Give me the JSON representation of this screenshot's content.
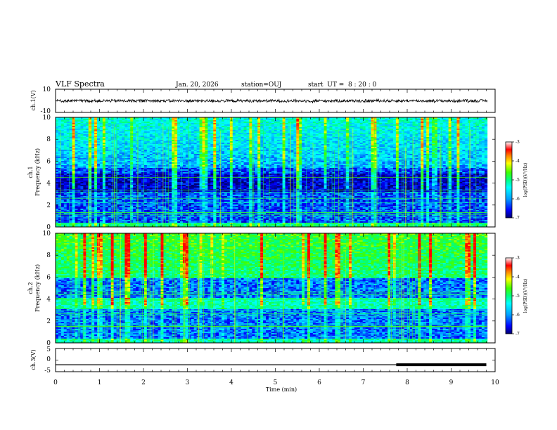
{
  "header": {
    "title": "VLF Spectra",
    "date": "Jan. 20, 2026",
    "station": "station=OUJ",
    "start_ut": "start  UT =  8 : 20 : 0"
  },
  "chart_data": {
    "type": "heatmap",
    "panels": [
      {
        "id": "ch1-waveform",
        "ylabel": "ch.1(V)",
        "ylim": [
          -10,
          10
        ],
        "yticks": [
          "10",
          "-10"
        ],
        "trace_amplitude_approx": 1.2
      },
      {
        "id": "ch1-spectrogram",
        "ylabel": "ch.1\nFrequency (kHz)",
        "ylim": [
          0,
          10
        ],
        "yticks": [
          "0",
          "2",
          "4",
          "6",
          "8",
          "10"
        ],
        "colorbar": {
          "label": "log(PSD)(V²/Hz)",
          "range": [
            -7,
            -3
          ],
          "ticks": [
            "-3",
            "-4",
            "-5",
            "-6",
            "-7"
          ]
        }
      },
      {
        "id": "ch2-spectrogram",
        "ylabel": "ch.2\nFrequency (kHz)",
        "ylim": [
          0,
          10
        ],
        "yticks": [
          "0",
          "2",
          "4",
          "6",
          "8",
          "10"
        ],
        "colorbar": {
          "label": "log(PSD)(V²/Hz)",
          "range": [
            -7,
            -3
          ],
          "ticks": [
            "-3",
            "-4",
            "-5",
            "-6",
            "-7"
          ]
        }
      },
      {
        "id": "ch3-waveform",
        "ylabel": "ch.3(V)",
        "ylim": [
          -5,
          5
        ],
        "yticks": [
          "5",
          "0",
          "-5"
        ],
        "trace": [
          {
            "x": 0,
            "y": -2
          },
          {
            "x": 7.75,
            "y": -2
          },
          {
            "x": 9.8,
            "y": -2
          }
        ],
        "thick_segment": [
          7.75,
          9.8
        ]
      }
    ],
    "x": {
      "label": "Time (min)",
      "ticks": [
        "0",
        "1",
        "2",
        "3",
        "4",
        "5",
        "6",
        "7",
        "8",
        "9",
        "10"
      ],
      "xlim": [
        0,
        10
      ],
      "data_end": 9.82
    },
    "colors": {
      "colormap": [
        "#000070",
        "#0000ff",
        "#00a0ff",
        "#00ffff",
        "#00ff80",
        "#40ff00",
        "#ffff00",
        "#ff8000",
        "#ff0000",
        "#ffffff"
      ]
    }
  }
}
